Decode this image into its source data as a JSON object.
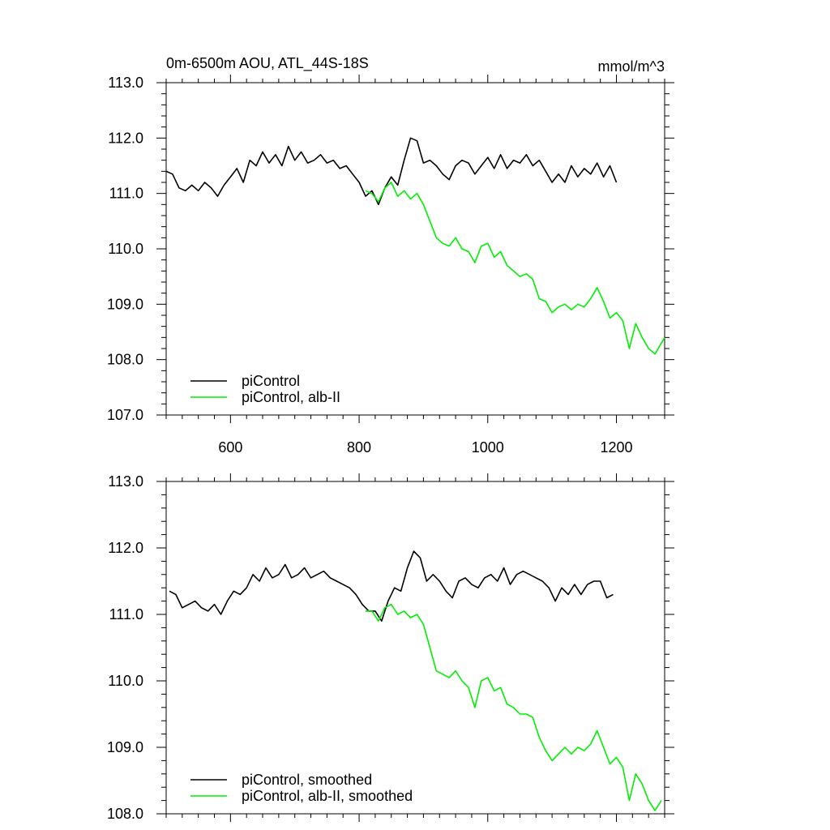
{
  "colors": {
    "control": "#000000",
    "alb": "#00ee00"
  },
  "chart_data": [
    {
      "type": "line",
      "title": "0m-6500m AOU, ATL_44S-18S",
      "units_label": "mmol/m^3",
      "xlim": [
        500,
        1275
      ],
      "ylim": [
        107.0,
        113.0
      ],
      "xticks": [
        600,
        800,
        1000,
        1200
      ],
      "xtick_labels": [
        "600",
        "800",
        "1000",
        "1200"
      ],
      "yticks": [
        107.0,
        108.0,
        109.0,
        110.0,
        111.0,
        112.0,
        113.0
      ],
      "ytick_labels": [
        "107.0",
        "108.0",
        "109.0",
        "110.0",
        "111.0",
        "112.0",
        "113.0"
      ],
      "grid": false,
      "legend_position": "bottom-left",
      "series": [
        {
          "name": "piControl",
          "color": "#000000",
          "x": [
            500,
            510,
            520,
            530,
            540,
            550,
            560,
            570,
            580,
            590,
            600,
            610,
            620,
            630,
            640,
            650,
            660,
            670,
            680,
            690,
            700,
            710,
            720,
            730,
            740,
            750,
            760,
            770,
            780,
            790,
            800,
            810,
            820,
            830,
            840,
            850,
            860,
            870,
            880,
            890,
            900,
            910,
            920,
            930,
            940,
            950,
            960,
            970,
            980,
            990,
            1000,
            1010,
            1020,
            1030,
            1040,
            1050,
            1060,
            1070,
            1080,
            1090,
            1100,
            1110,
            1120,
            1130,
            1140,
            1150,
            1160,
            1170,
            1180,
            1190,
            1200
          ],
          "y": [
            111.4,
            111.35,
            111.1,
            111.05,
            111.15,
            111.05,
            111.2,
            111.1,
            110.95,
            111.15,
            111.3,
            111.45,
            111.2,
            111.6,
            111.5,
            111.75,
            111.55,
            111.7,
            111.5,
            111.85,
            111.6,
            111.75,
            111.55,
            111.6,
            111.7,
            111.55,
            111.6,
            111.45,
            111.5,
            111.35,
            111.2,
            110.95,
            111.05,
            110.8,
            111.1,
            111.3,
            111.15,
            111.6,
            112.0,
            111.95,
            111.55,
            111.6,
            111.5,
            111.35,
            111.25,
            111.5,
            111.6,
            111.55,
            111.35,
            111.5,
            111.65,
            111.45,
            111.7,
            111.45,
            111.6,
            111.55,
            111.7,
            111.5,
            111.6,
            111.4,
            111.2,
            111.35,
            111.2,
            111.5,
            111.3,
            111.45,
            111.35,
            111.55,
            111.3,
            111.5,
            111.2
          ]
        },
        {
          "name": "piControl, alb-II",
          "color": "#00ee00",
          "x": [
            810,
            820,
            830,
            840,
            850,
            860,
            870,
            880,
            890,
            900,
            910,
            920,
            930,
            940,
            950,
            960,
            970,
            980,
            990,
            1000,
            1010,
            1020,
            1030,
            1040,
            1050,
            1060,
            1070,
            1080,
            1090,
            1100,
            1110,
            1120,
            1130,
            1140,
            1150,
            1160,
            1170,
            1180,
            1190,
            1200,
            1210,
            1220,
            1230,
            1240,
            1250,
            1260,
            1270,
            1275
          ],
          "y": [
            111.05,
            111.0,
            110.85,
            111.1,
            111.2,
            110.95,
            111.05,
            110.9,
            111.0,
            110.8,
            110.5,
            110.2,
            110.1,
            110.05,
            110.2,
            110.0,
            109.95,
            109.75,
            110.05,
            110.1,
            109.85,
            109.95,
            109.7,
            109.6,
            109.5,
            109.55,
            109.45,
            109.1,
            109.05,
            108.85,
            108.95,
            109.0,
            108.9,
            109.0,
            108.95,
            109.1,
            109.3,
            109.05,
            108.75,
            108.85,
            108.7,
            108.2,
            108.65,
            108.4,
            108.2,
            108.1,
            108.3,
            108.4
          ]
        }
      ]
    },
    {
      "type": "line",
      "xlim": [
        500,
        1275
      ],
      "ylim": [
        108.0,
        113.0
      ],
      "xticks": [
        600,
        800,
        1000,
        1200
      ],
      "yticks": [
        108.0,
        109.0,
        110.0,
        111.0,
        112.0,
        113.0
      ],
      "ytick_labels": [
        "108.0",
        "109.0",
        "110.0",
        "111.0",
        "112.0",
        "113.0"
      ],
      "grid": false,
      "legend_position": "bottom-left",
      "series": [
        {
          "name": "piControl, smoothed",
          "color": "#000000",
          "x": [
            505,
            515,
            525,
            535,
            545,
            555,
            565,
            575,
            585,
            595,
            605,
            615,
            625,
            635,
            645,
            655,
            665,
            675,
            685,
            695,
            705,
            715,
            725,
            735,
            745,
            755,
            765,
            775,
            785,
            795,
            805,
            815,
            825,
            835,
            845,
            855,
            865,
            875,
            885,
            895,
            905,
            915,
            925,
            935,
            945,
            955,
            965,
            975,
            985,
            995,
            1005,
            1015,
            1025,
            1035,
            1045,
            1055,
            1065,
            1075,
            1085,
            1095,
            1105,
            1115,
            1125,
            1135,
            1145,
            1155,
            1165,
            1175,
            1185,
            1195
          ],
          "y": [
            111.35,
            111.3,
            111.1,
            111.15,
            111.2,
            111.1,
            111.05,
            111.15,
            111.0,
            111.2,
            111.35,
            111.3,
            111.4,
            111.6,
            111.5,
            111.7,
            111.55,
            111.6,
            111.75,
            111.55,
            111.6,
            111.7,
            111.55,
            111.6,
            111.65,
            111.55,
            111.5,
            111.45,
            111.4,
            111.3,
            111.15,
            111.05,
            111.05,
            110.9,
            111.2,
            111.4,
            111.35,
            111.7,
            111.95,
            111.85,
            111.5,
            111.6,
            111.5,
            111.35,
            111.25,
            111.5,
            111.55,
            111.45,
            111.4,
            111.55,
            111.6,
            111.5,
            111.7,
            111.45,
            111.6,
            111.65,
            111.6,
            111.55,
            111.5,
            111.4,
            111.2,
            111.4,
            111.3,
            111.45,
            111.3,
            111.45,
            111.5,
            111.5,
            111.25,
            111.3
          ]
        },
        {
          "name": "piControl, alb-II, smoothed",
          "color": "#00ee00",
          "x": [
            810,
            820,
            830,
            840,
            850,
            860,
            870,
            880,
            890,
            900,
            910,
            920,
            930,
            940,
            950,
            960,
            970,
            980,
            990,
            1000,
            1010,
            1020,
            1030,
            1040,
            1050,
            1060,
            1070,
            1080,
            1090,
            1100,
            1110,
            1120,
            1130,
            1140,
            1150,
            1160,
            1170,
            1180,
            1190,
            1200,
            1210,
            1220,
            1230,
            1240,
            1250,
            1260,
            1270
          ],
          "y": [
            111.05,
            111.05,
            110.9,
            111.1,
            111.15,
            111.0,
            111.05,
            110.95,
            111.0,
            110.85,
            110.5,
            110.15,
            110.1,
            110.05,
            110.15,
            110.0,
            109.9,
            109.6,
            110.0,
            110.05,
            109.85,
            109.9,
            109.65,
            109.6,
            109.5,
            109.5,
            109.45,
            109.15,
            108.95,
            108.8,
            108.9,
            109.0,
            108.9,
            109.0,
            108.95,
            109.05,
            109.25,
            109.0,
            108.75,
            108.85,
            108.7,
            108.2,
            108.6,
            108.45,
            108.2,
            108.05,
            108.2
          ]
        }
      ]
    }
  ]
}
